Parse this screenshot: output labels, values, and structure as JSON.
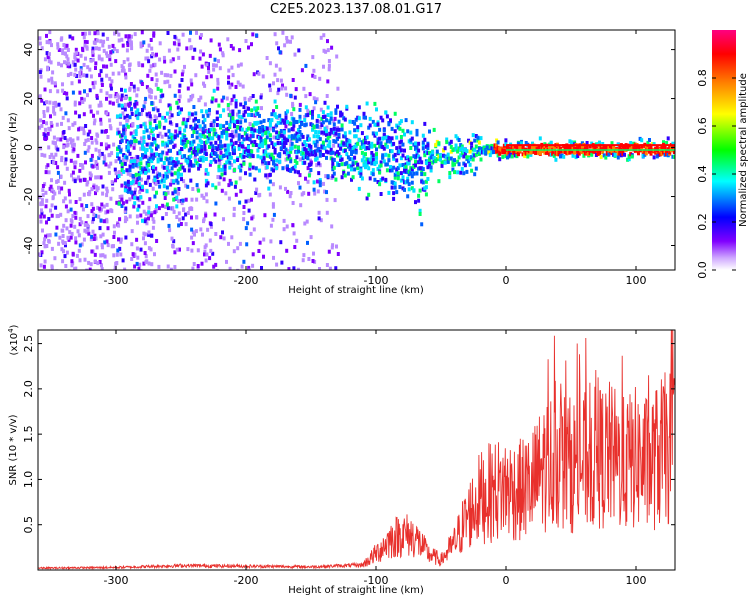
{
  "title": "C2E5.2023.137.08.01.G17",
  "chart_data": [
    {
      "type": "heatmap",
      "xlabel": "Height of straight line (km)",
      "ylabel": "Frequency (Hz)",
      "xlim": [
        -360,
        130
      ],
      "ylim": [
        -50,
        48
      ],
      "x_ticks": [
        -300,
        -200,
        -100,
        0,
        100
      ],
      "y_ticks": [
        -40,
        -20,
        0,
        20,
        40
      ],
      "colorbar": {
        "label": "Normalized spectral amplitude",
        "range": [
          0.0,
          1.0
        ],
        "ticks": [
          0.0,
          0.2,
          0.4,
          0.6,
          0.8
        ],
        "colormap": [
          "#ffffff",
          "#8000ff",
          "#0000ff",
          "#00ffff",
          "#00ff00",
          "#ffff00",
          "#ff8000",
          "#ff0000",
          "#ff0080"
        ]
      },
      "ridge": [
        {
          "x": -250,
          "y": 0
        },
        {
          "x": -200,
          "y": 5
        },
        {
          "x": -160,
          "y": 3
        },
        {
          "x": -120,
          "y": 2
        },
        {
          "x": -100,
          "y": 0
        },
        {
          "x": -80,
          "y": -2
        },
        {
          "x": -65,
          "y": -8
        },
        {
          "x": -55,
          "y": -2
        },
        {
          "x": -45,
          "y": -4
        },
        {
          "x": -30,
          "y": -2
        },
        {
          "x": -15,
          "y": 0
        },
        {
          "x": 0,
          "y": 0
        },
        {
          "x": 50,
          "y": 0
        },
        {
          "x": 100,
          "y": 0
        },
        {
          "x": 130,
          "y": 0
        }
      ]
    },
    {
      "type": "line",
      "xlabel": "Height of straight line (km)",
      "ylabel": "SNR (10 * v/v)",
      "y_scale_note": "(x10",
      "y_scale_exp": "4",
      "y_scale_close": ")",
      "xlim": [
        -360,
        130
      ],
      "ylim": [
        0,
        26500
      ],
      "x_ticks": [
        -300,
        -200,
        -100,
        0,
        100
      ],
      "y_ticks": [
        0.5,
        1.0,
        1.5,
        2.0,
        2.5
      ],
      "y_tick_labels": [
        "0.5",
        "1.0",
        "1.5",
        "2.0",
        "2.5"
      ],
      "series": [
        {
          "color": "#e8302c",
          "envelope": [
            {
              "x": -360,
              "y": 300
            },
            {
              "x": -300,
              "y": 400
            },
            {
              "x": -250,
              "y": 700
            },
            {
              "x": -200,
              "y": 600
            },
            {
              "x": -150,
              "y": 500
            },
            {
              "x": -110,
              "y": 800
            },
            {
              "x": -100,
              "y": 2500
            },
            {
              "x": -90,
              "y": 4500
            },
            {
              "x": -80,
              "y": 5500
            },
            {
              "x": -70,
              "y": 5000
            },
            {
              "x": -60,
              "y": 2500
            },
            {
              "x": -50,
              "y": 1500
            },
            {
              "x": -40,
              "y": 4000
            },
            {
              "x": -30,
              "y": 8000
            },
            {
              "x": -20,
              "y": 11000
            },
            {
              "x": -10,
              "y": 12000
            },
            {
              "x": 0,
              "y": 12500
            },
            {
              "x": 10,
              "y": 12000
            },
            {
              "x": 20,
              "y": 13000
            },
            {
              "x": 30,
              "y": 16000
            },
            {
              "x": 40,
              "y": 17000
            },
            {
              "x": 50,
              "y": 16000
            },
            {
              "x": 60,
              "y": 16500
            },
            {
              "x": 70,
              "y": 17000
            },
            {
              "x": 80,
              "y": 17500
            },
            {
              "x": 90,
              "y": 16000
            },
            {
              "x": 100,
              "y": 17000
            },
            {
              "x": 110,
              "y": 16000
            },
            {
              "x": 120,
              "y": 18000
            },
            {
              "x": 130,
              "y": 19000
            }
          ]
        }
      ]
    }
  ]
}
